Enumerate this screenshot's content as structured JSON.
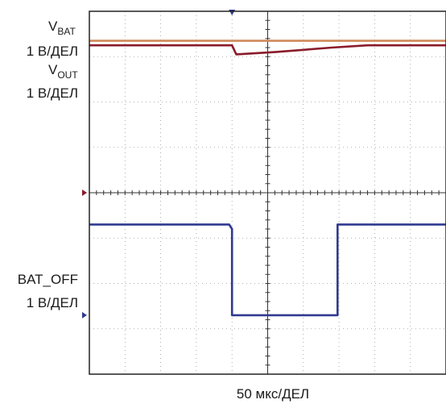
{
  "chart_data": {
    "type": "line",
    "x_axis": {
      "label": "50 мкс/ДЕЛ",
      "divisions": 10,
      "range": [
        0,
        500
      ]
    },
    "y_axis": {
      "divisions": 8,
      "range": [
        0,
        8
      ]
    },
    "grid": true,
    "channels": [
      {
        "name_main": "V",
        "name_sub": "BAT",
        "scale": "1 В/ДЕЛ",
        "color": "#d08a5a"
      },
      {
        "name_main": "V",
        "name_sub": "OUT",
        "scale": "1 В/ДЕЛ",
        "color": "#8a1b2a"
      },
      {
        "name_main": "BAT_OFF",
        "name_sub": "",
        "scale": "1 В/ДЕЛ",
        "color": "#2f3a8f"
      }
    ],
    "series": [
      {
        "name": "VBAT",
        "color": "#d08a5a",
        "x": [
          0,
          500
        ],
        "y": [
          7.35,
          7.35
        ]
      },
      {
        "name": "VOUT",
        "color": "#8a1b2a",
        "x": [
          0,
          200,
          206,
          260,
          340,
          390,
          500
        ],
        "y": [
          7.25,
          7.25,
          7.05,
          7.1,
          7.2,
          7.25,
          7.25
        ]
      },
      {
        "name": "BAT_OFF",
        "color": "#2f3a8f",
        "x": [
          0,
          196,
          200,
          200,
          348,
          348,
          500
        ],
        "y": [
          3.3,
          3.3,
          3.2,
          1.3,
          1.3,
          3.3,
          3.3
        ]
      }
    ],
    "markers": {
      "trigger_x": 200,
      "ch_left_levels": [
        {
          "color": "#8a1b2a",
          "y": 4
        },
        {
          "color": "#2f3a8f",
          "y": 1.3
        }
      ]
    }
  }
}
